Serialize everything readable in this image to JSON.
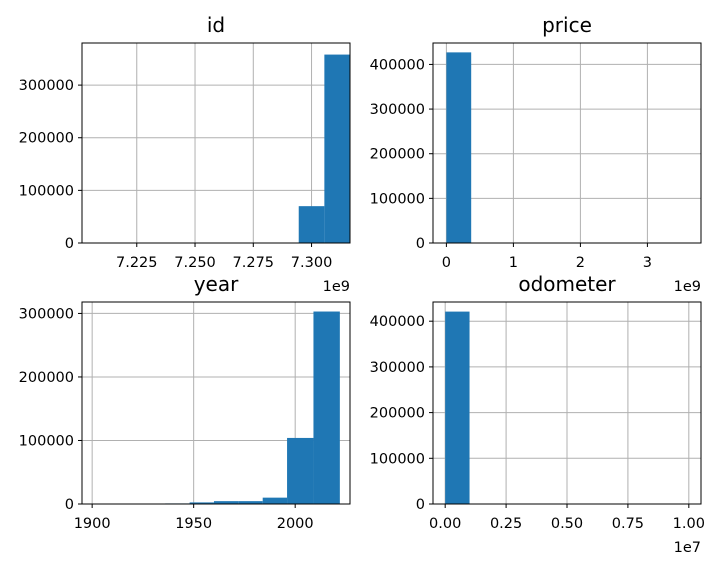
{
  "chart_data": [
    {
      "type": "histogram",
      "title": "id",
      "xlim": [
        7.2015,
        7.3165
      ],
      "ylim": [
        0,
        380000
      ],
      "x_ticks": [
        7.225,
        7.25,
        7.275,
        7.3
      ],
      "x_tick_labels": [
        "7.225",
        "7.250",
        "7.275",
        "7.300"
      ],
      "y_ticks": [
        0,
        100000,
        200000,
        300000
      ],
      "y_tick_labels": [
        "0",
        "100000",
        "200000",
        "300000"
      ],
      "x_offset_label": "1e9",
      "bins": [
        {
          "x0": 7.2015,
          "x1": 7.2945,
          "count": 0
        },
        {
          "x0": 7.2945,
          "x1": 7.3055,
          "count": 70000
        },
        {
          "x0": 7.3055,
          "x1": 7.3165,
          "count": 358000
        }
      ]
    },
    {
      "type": "histogram",
      "title": "price",
      "xlim": [
        -0.2,
        3.8
      ],
      "ylim": [
        0,
        448000
      ],
      "x_ticks": [
        0,
        1,
        2,
        3
      ],
      "x_tick_labels": [
        "0",
        "1",
        "2",
        "3"
      ],
      "y_ticks": [
        0,
        100000,
        200000,
        300000,
        400000
      ],
      "y_tick_labels": [
        "0",
        "100000",
        "200000",
        "300000",
        "400000"
      ],
      "x_offset_label": "1e9",
      "bins": [
        {
          "x0": 0,
          "x1": 0.37,
          "count": 427000
        }
      ]
    },
    {
      "type": "histogram",
      "title": "year",
      "xlim": [
        1895,
        2027
      ],
      "ylim": [
        0,
        318000
      ],
      "x_ticks": [
        1900,
        1950,
        2000
      ],
      "x_tick_labels": [
        "1900",
        "1950",
        "2000"
      ],
      "y_ticks": [
        0,
        100000,
        200000,
        300000
      ],
      "y_tick_labels": [
        "0",
        "100000",
        "200000",
        "300000"
      ],
      "x_offset_label": "",
      "bins": [
        {
          "x0": 1900,
          "x1": 1912,
          "count": 300
        },
        {
          "x0": 1912,
          "x1": 1924,
          "count": 400
        },
        {
          "x0": 1924,
          "x1": 1936,
          "count": 600
        },
        {
          "x0": 1936,
          "x1": 1948,
          "count": 900
        },
        {
          "x0": 1948,
          "x1": 1960,
          "count": 2500
        },
        {
          "x0": 1960,
          "x1": 1972,
          "count": 4500
        },
        {
          "x0": 1972,
          "x1": 1984,
          "count": 4500
        },
        {
          "x0": 1984,
          "x1": 1996,
          "count": 10000
        },
        {
          "x0": 1996,
          "x1": 2009,
          "count": 104000
        },
        {
          "x0": 2009,
          "x1": 2022,
          "count": 303000
        }
      ]
    },
    {
      "type": "histogram",
      "title": "odometer",
      "xlim": [
        -0.05,
        1.05
      ],
      "ylim": [
        0,
        442000
      ],
      "x_ticks": [
        0,
        0.25,
        0.5,
        0.75,
        1.0
      ],
      "x_tick_labels": [
        "0.00",
        "0.25",
        "0.50",
        "0.75",
        "1.00"
      ],
      "y_ticks": [
        0,
        100000,
        200000,
        300000,
        400000
      ],
      "y_tick_labels": [
        "0",
        "100000",
        "200000",
        "300000",
        "400000"
      ],
      "x_offset_label": "1e7",
      "bins": [
        {
          "x0": 0,
          "x1": 0.1,
          "count": 421000
        }
      ]
    }
  ]
}
